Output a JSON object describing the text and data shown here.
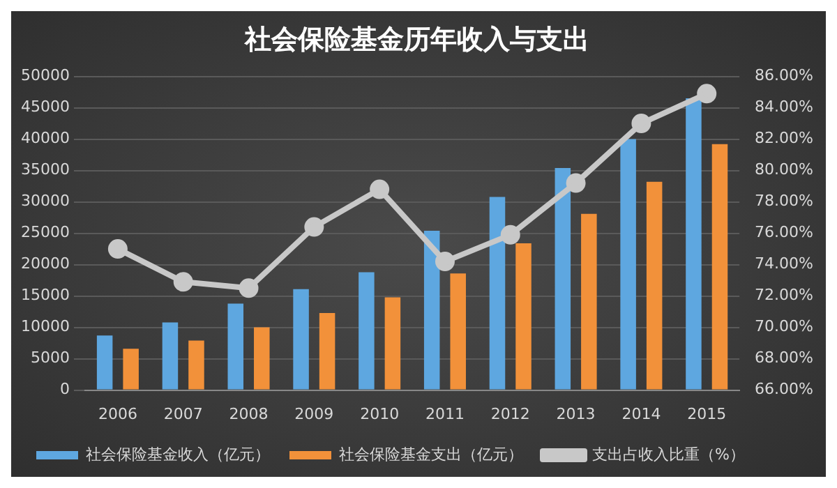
{
  "chart_data": {
    "type": "bar",
    "title": "社会保险基金历年收入与支出",
    "categories": [
      "2006",
      "2007",
      "2008",
      "2009",
      "2010",
      "2011",
      "2012",
      "2013",
      "2014",
      "2015"
    ],
    "series": [
      {
        "name": "社会保险基金收入（亿元）",
        "color": "#5ea7e0",
        "values": [
          8700,
          10800,
          13800,
          16100,
          18800,
          25400,
          30800,
          35400,
          40000,
          46500
        ]
      },
      {
        "name": "社会保险基金支出（亿元）",
        "color": "#f2913a",
        "values": [
          6600,
          7900,
          10000,
          12300,
          14800,
          18600,
          23400,
          28100,
          33200,
          39200
        ]
      },
      {
        "name": "支出占收入比重（%）",
        "type": "line",
        "axis": "y2",
        "color": "#c8c8c8",
        "values": [
          75.0,
          72.9,
          72.5,
          76.4,
          78.8,
          74.2,
          75.9,
          79.2,
          83.0,
          84.9
        ]
      }
    ],
    "ylim": [
      0,
      50000
    ],
    "yticks": [
      0,
      5000,
      10000,
      15000,
      20000,
      25000,
      30000,
      35000,
      40000,
      45000,
      50000
    ],
    "y2lim": [
      66,
      86
    ],
    "y2ticks": [
      {
        "value": 66,
        "label": "66.00%"
      },
      {
        "value": 68,
        "label": "68.00%"
      },
      {
        "value": 70,
        "label": "70.00%"
      },
      {
        "value": 72,
        "label": "72.00%"
      },
      {
        "value": 74,
        "label": "74.00%"
      },
      {
        "value": 76,
        "label": "76.00%"
      },
      {
        "value": 78,
        "label": "78.00%"
      },
      {
        "value": 80,
        "label": "80.00%"
      },
      {
        "value": 82,
        "label": "82.00%"
      },
      {
        "value": 84,
        "label": "84.00%"
      },
      {
        "value": 86,
        "label": "86.00%"
      }
    ],
    "grid": "y",
    "legend": "bottom",
    "marker": "circle"
  }
}
